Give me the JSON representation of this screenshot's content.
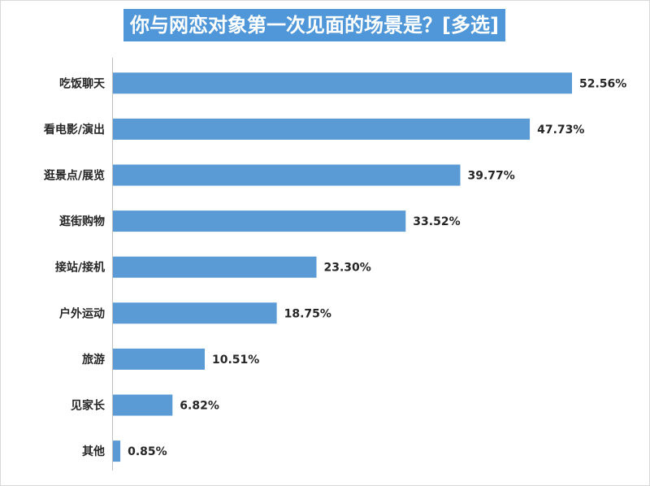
{
  "chart_data": {
    "type": "bar",
    "orientation": "horizontal",
    "title": "你与网恋对象第一次见面的场景是？[多选]",
    "categories": [
      "吃饭聊天",
      "看电影/演出",
      "逛景点/展览",
      "逛街购物",
      "接站/接机",
      "户外运动",
      "旅游",
      "见家长",
      "其他"
    ],
    "values": [
      52.56,
      47.73,
      39.77,
      33.52,
      23.3,
      18.75,
      10.51,
      6.82,
      0.85
    ],
    "value_labels": [
      "52.56%",
      "47.73%",
      "39.77%",
      "33.52%",
      "23.30%",
      "18.75%",
      "10.51%",
      "6.82%",
      "0.85%"
    ],
    "value_unit": "%",
    "xlim": [
      0,
      60
    ],
    "grid": false,
    "legend": "none",
    "colors": {
      "bar": "#5b9bd5",
      "title_background": "#4f97d8",
      "title_text": "#ffffff"
    }
  }
}
